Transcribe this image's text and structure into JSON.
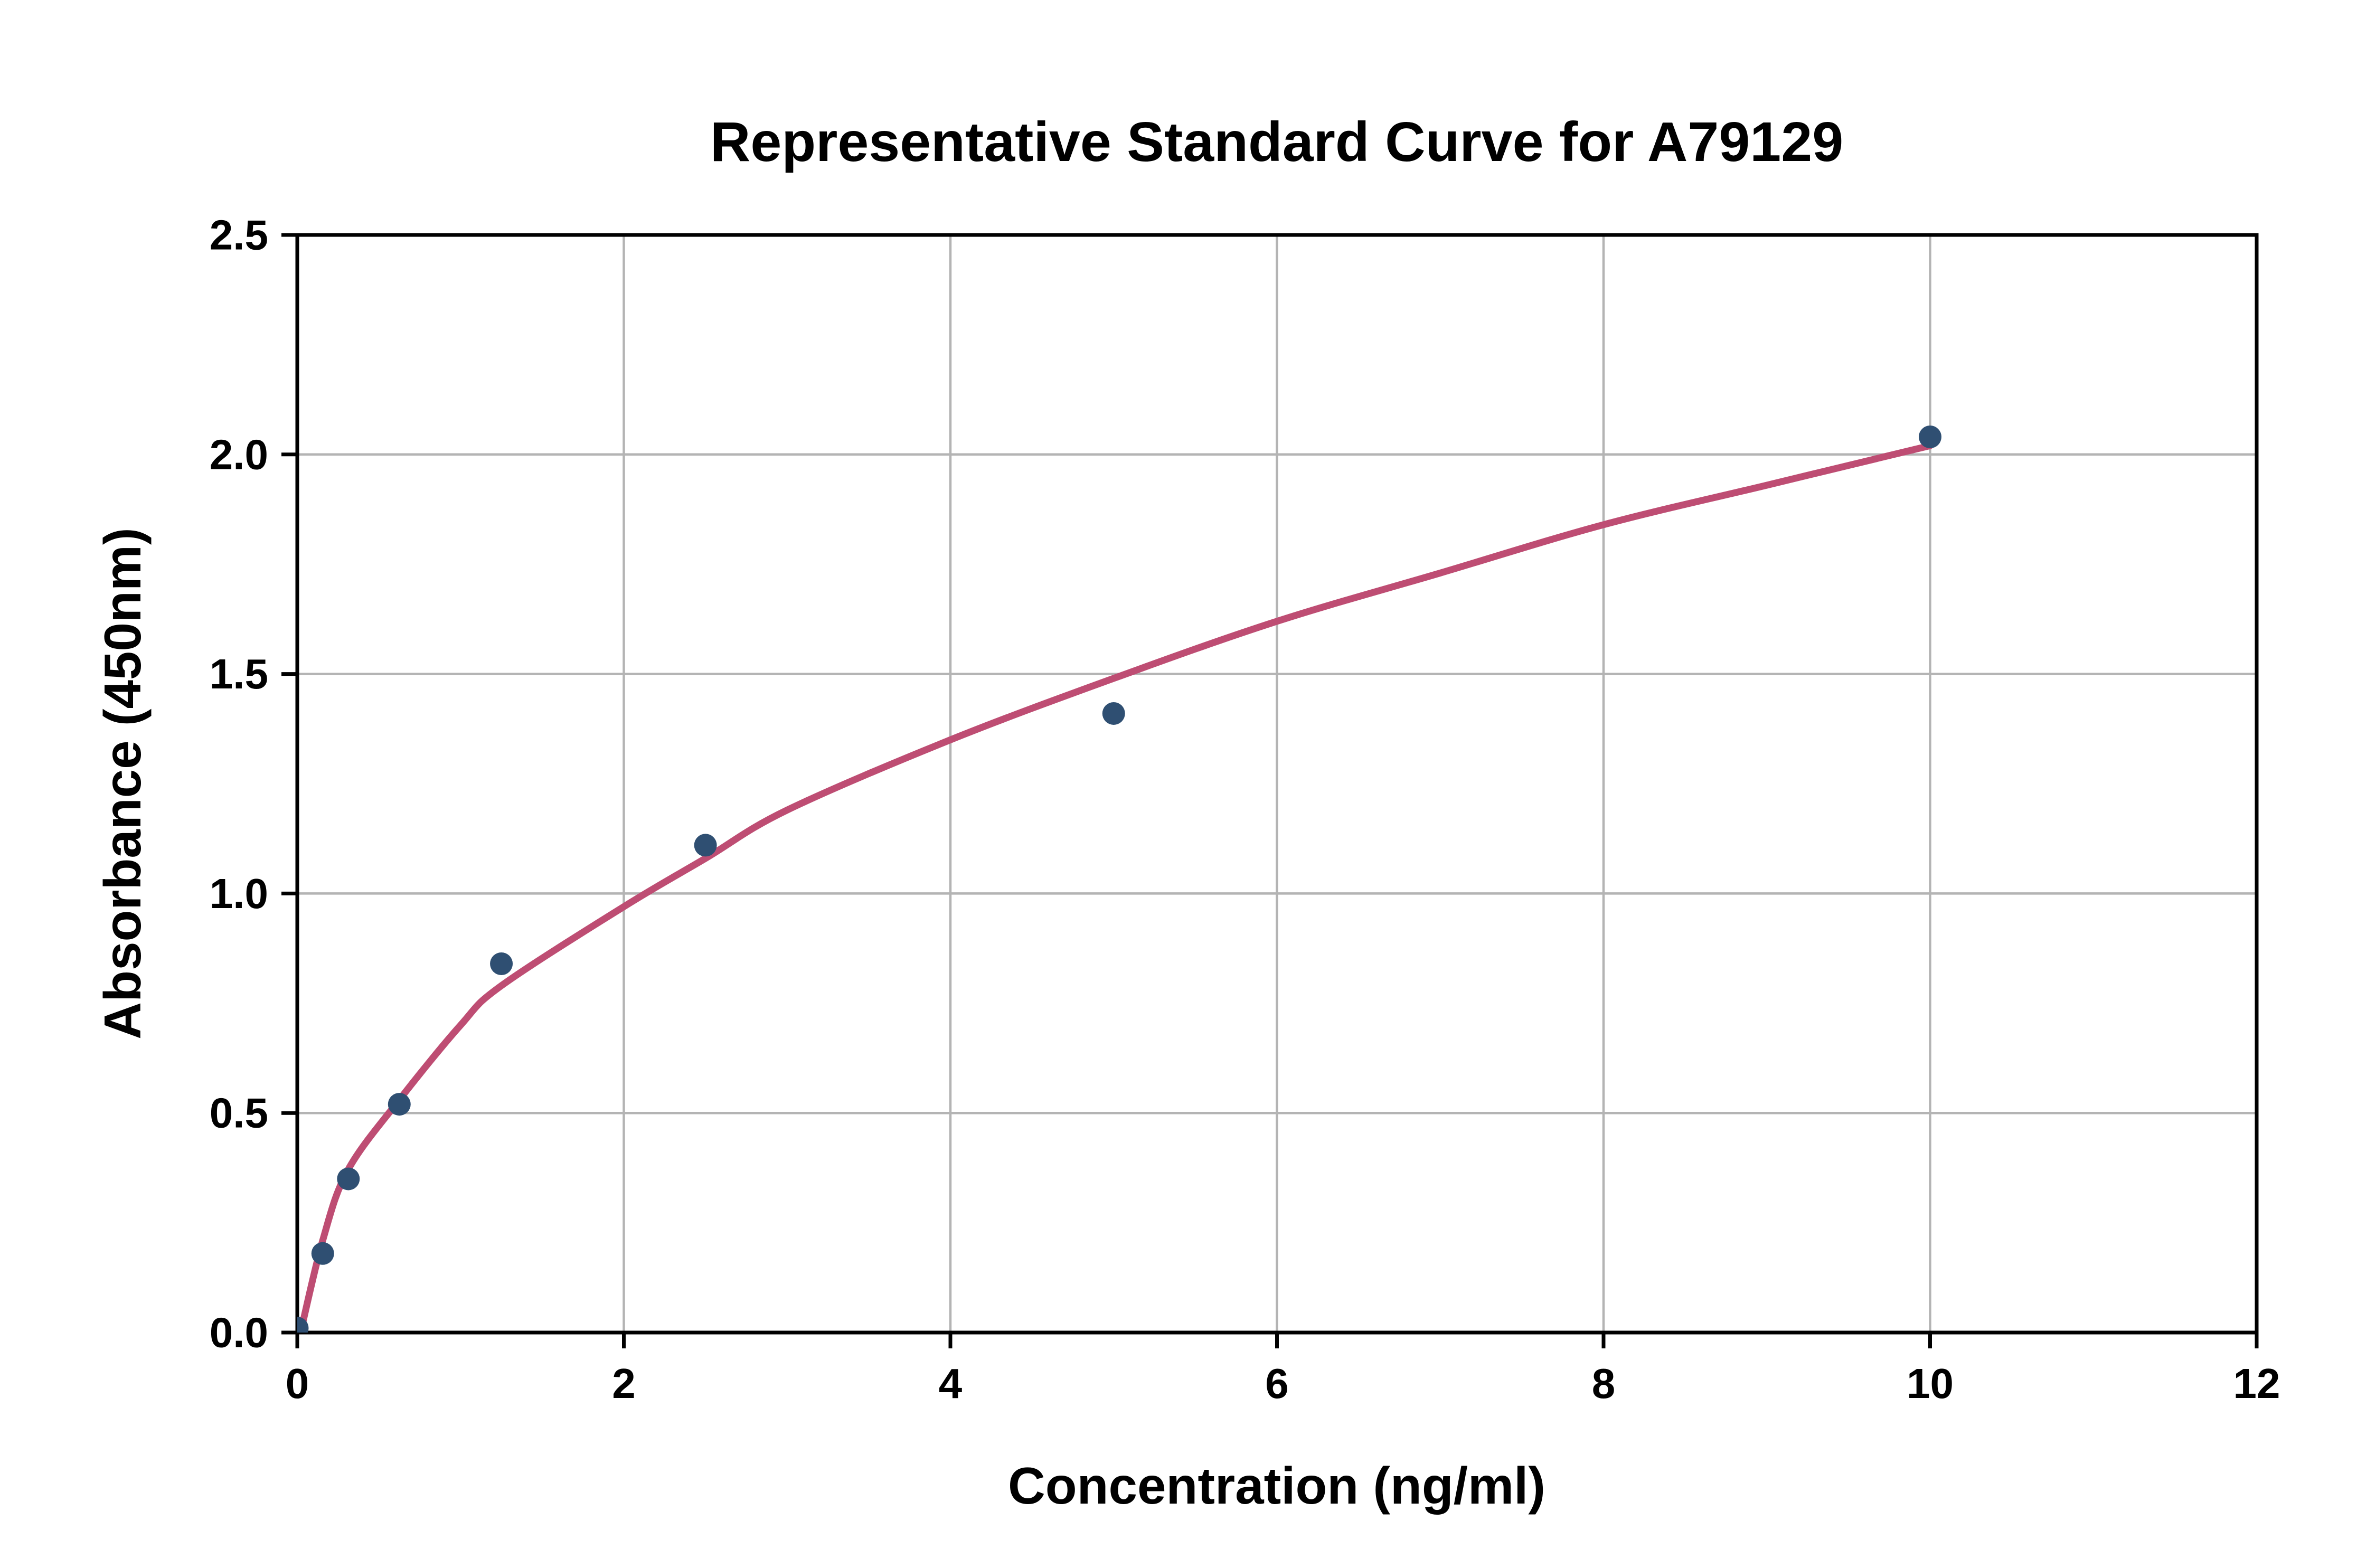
{
  "chart_data": {
    "type": "scatter",
    "title": "Representative Standard Curve for A79129",
    "xlabel": "Concentration (ng/ml)",
    "ylabel": "Absorbance (450nm)",
    "xlim": [
      0,
      12
    ],
    "ylim": [
      0,
      2.5
    ],
    "x_ticks": [
      "0",
      "2",
      "4",
      "6",
      "8",
      "10",
      "12"
    ],
    "x_tick_values": [
      0,
      2,
      4,
      6,
      8,
      10,
      12
    ],
    "y_ticks": [
      "0.0",
      "0.5",
      "1.0",
      "1.5",
      "2.0",
      "2.5"
    ],
    "y_tick_values": [
      0,
      0.5,
      1.0,
      1.5,
      2.0,
      2.5
    ],
    "grid": true,
    "legend": "none",
    "points": [
      {
        "x": 0,
        "y": 0.01
      },
      {
        "x": 0.156,
        "y": 0.18
      },
      {
        "x": 0.313,
        "y": 0.35
      },
      {
        "x": 0.625,
        "y": 0.52
      },
      {
        "x": 1.25,
        "y": 0.84
      },
      {
        "x": 2.5,
        "y": 1.11
      },
      {
        "x": 5,
        "y": 1.41
      },
      {
        "x": 10,
        "y": 2.04
      }
    ],
    "fit_curve": [
      [
        0.02,
        0.0
      ],
      [
        0.156,
        0.21
      ],
      [
        0.31,
        0.37
      ],
      [
        0.625,
        0.53
      ],
      [
        1.0,
        0.7
      ],
      [
        1.25,
        0.79
      ],
      [
        2.0,
        0.97
      ],
      [
        2.5,
        1.08
      ],
      [
        3.0,
        1.19
      ],
      [
        4.0,
        1.35
      ],
      [
        5.0,
        1.49
      ],
      [
        6.0,
        1.62
      ],
      [
        7.0,
        1.73
      ],
      [
        8.0,
        1.84
      ],
      [
        9.0,
        1.93
      ],
      [
        10.0,
        2.02
      ]
    ],
    "colors": {
      "point": "#2f4f72",
      "curve": "#be4d73",
      "grid": "#b4b4b4",
      "axis": "#000000",
      "text": "#000000"
    }
  }
}
